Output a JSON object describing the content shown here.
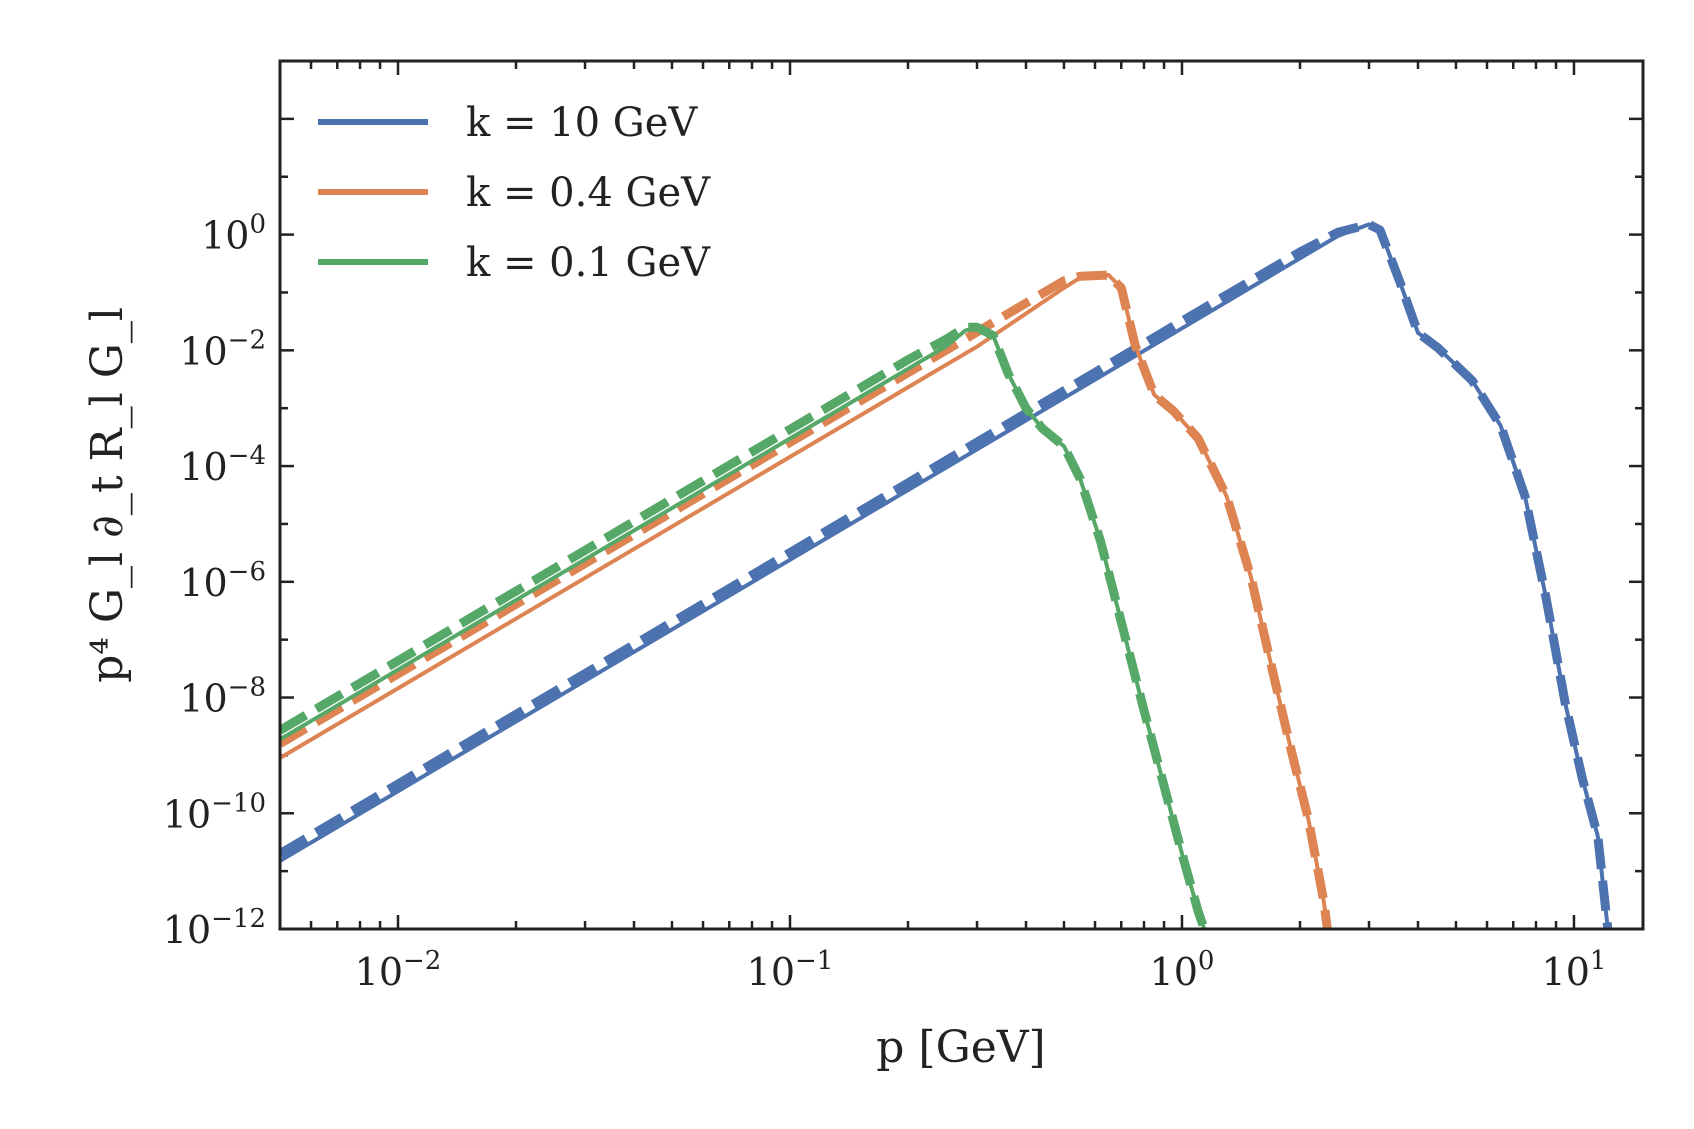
{
  "chart_data": {
    "type": "line",
    "xscale": "log",
    "yscale": "log",
    "xlim": [
      0.005,
      15
    ],
    "ylim": [
      1e-12,
      1000
    ],
    "xlabel": "p [GeV]",
    "ylabel": "p⁴ G_l ∂_t R_l G_l",
    "xtick_labels": [
      {
        "value": 0.01,
        "base": "10",
        "exp": "−2"
      },
      {
        "value": 0.1,
        "base": "10",
        "exp": "−1"
      },
      {
        "value": 1,
        "base": "10",
        "exp": "0"
      },
      {
        "value": 10,
        "base": "10",
        "exp": "1"
      }
    ],
    "ytick_labels": [
      {
        "value": 1,
        "base": "10",
        "exp": "0"
      },
      {
        "value": 0.01,
        "base": "10",
        "exp": "−2"
      },
      {
        "value": 0.0001,
        "base": "10",
        "exp": "−4"
      },
      {
        "value": 1e-06,
        "base": "10",
        "exp": "−6"
      },
      {
        "value": 1e-08,
        "base": "10",
        "exp": "−8"
      },
      {
        "value": 1e-10,
        "base": "10",
        "exp": "−10"
      },
      {
        "value": 1e-12,
        "base": "10",
        "exp": "−12"
      }
    ],
    "legend_position": "top-left",
    "series": [
      {
        "name": "k = 10 GeV",
        "color": "#4c72b0",
        "solid": [
          [
            0.005,
            1.5e-11
          ],
          [
            0.1,
            2.4e-06
          ],
          [
            1.0,
            0.024
          ],
          [
            2.0,
            0.39
          ],
          [
            2.5,
            0.95
          ],
          [
            3.0,
            1.5
          ],
          [
            3.2,
            1.2
          ],
          [
            3.6,
            0.15
          ],
          [
            4.0,
            0.02
          ],
          [
            4.5,
            0.011
          ],
          [
            5.5,
            0.003
          ],
          [
            6.5,
            0.0005
          ],
          [
            7.5,
            3e-05
          ],
          [
            8.5,
            5e-07
          ],
          [
            9.5,
            8e-09
          ],
          [
            10.5,
            4e-10
          ],
          [
            11.5,
            4e-11
          ],
          [
            12.2,
            1e-12
          ]
        ],
        "dashed": [
          [
            0.005,
            2e-11
          ],
          [
            0.1,
            3.2e-06
          ],
          [
            1.0,
            0.032
          ],
          [
            2.0,
            0.5
          ],
          [
            2.5,
            1.1
          ],
          [
            3.0,
            1.5
          ],
          [
            3.2,
            1.2
          ],
          [
            3.6,
            0.15
          ],
          [
            4.0,
            0.02
          ],
          [
            4.5,
            0.011
          ],
          [
            5.5,
            0.003
          ],
          [
            6.5,
            0.0005
          ],
          [
            7.5,
            3e-05
          ],
          [
            8.5,
            5e-07
          ],
          [
            9.5,
            8e-09
          ],
          [
            10.5,
            4e-10
          ],
          [
            11.5,
            4e-11
          ],
          [
            12.2,
            1e-12
          ]
        ]
      },
      {
        "name": "k = 0.4 GeV",
        "color": "#dd8452",
        "solid": [
          [
            0.005,
            9e-10
          ],
          [
            0.1,
            0.000144
          ],
          [
            0.3,
            0.0116
          ],
          [
            0.5,
            0.12
          ],
          [
            0.55,
            0.18
          ],
          [
            0.65,
            0.2
          ],
          [
            0.7,
            0.12
          ],
          [
            0.76,
            0.012
          ],
          [
            0.85,
            0.0017
          ],
          [
            0.95,
            0.0009
          ],
          [
            1.1,
            0.0003
          ],
          [
            1.3,
            3e-05
          ],
          [
            1.5,
            1.2e-06
          ],
          [
            1.7,
            3e-08
          ],
          [
            1.9,
            1.2e-09
          ],
          [
            2.1,
            8e-11
          ],
          [
            2.3,
            3e-12
          ],
          [
            2.35,
            1e-12
          ]
        ],
        "dashed": [
          [
            0.005,
            1.6e-09
          ],
          [
            0.1,
            0.000256
          ],
          [
            0.3,
            0.0207
          ],
          [
            0.5,
            0.16
          ],
          [
            0.55,
            0.19
          ],
          [
            0.65,
            0.2
          ],
          [
            0.7,
            0.12
          ],
          [
            0.76,
            0.012
          ],
          [
            0.85,
            0.0017
          ],
          [
            0.95,
            0.0009
          ],
          [
            1.1,
            0.0003
          ],
          [
            1.3,
            3e-05
          ],
          [
            1.5,
            1.2e-06
          ],
          [
            1.7,
            3e-08
          ],
          [
            1.9,
            1.2e-09
          ],
          [
            2.1,
            8e-11
          ],
          [
            2.3,
            3e-12
          ],
          [
            2.35,
            1e-12
          ]
        ]
      },
      {
        "name": "k = 0.1 GeV",
        "color": "#55a868",
        "solid": [
          [
            0.005,
            1.9e-09
          ],
          [
            0.1,
            0.0003
          ],
          [
            0.2,
            0.0048
          ],
          [
            0.25,
            0.0117
          ],
          [
            0.28,
            0.022
          ],
          [
            0.3,
            0.025
          ],
          [
            0.33,
            0.018
          ],
          [
            0.36,
            0.004
          ],
          [
            0.4,
            0.001
          ],
          [
            0.44,
            0.00045
          ],
          [
            0.5,
            0.00022
          ],
          [
            0.55,
            6e-05
          ],
          [
            0.62,
            5e-06
          ],
          [
            0.7,
            2e-07
          ],
          [
            0.8,
            6e-09
          ],
          [
            0.9,
            3e-10
          ],
          [
            1.0,
            2e-11
          ],
          [
            1.1,
            2e-12
          ],
          [
            1.14,
            1e-12
          ]
        ],
        "dashed": [
          [
            0.005,
            2.7e-09
          ],
          [
            0.1,
            0.00043
          ],
          [
            0.2,
            0.0069
          ],
          [
            0.25,
            0.0155
          ],
          [
            0.28,
            0.025
          ],
          [
            0.3,
            0.025
          ],
          [
            0.33,
            0.018
          ],
          [
            0.36,
            0.004
          ],
          [
            0.4,
            0.001
          ],
          [
            0.44,
            0.00045
          ],
          [
            0.5,
            0.00022
          ],
          [
            0.55,
            6e-05
          ],
          [
            0.62,
            5e-06
          ],
          [
            0.7,
            2e-07
          ],
          [
            0.8,
            6e-09
          ],
          [
            0.9,
            3e-10
          ],
          [
            1.0,
            2e-11
          ],
          [
            1.1,
            2e-12
          ],
          [
            1.14,
            1e-12
          ]
        ]
      }
    ]
  }
}
